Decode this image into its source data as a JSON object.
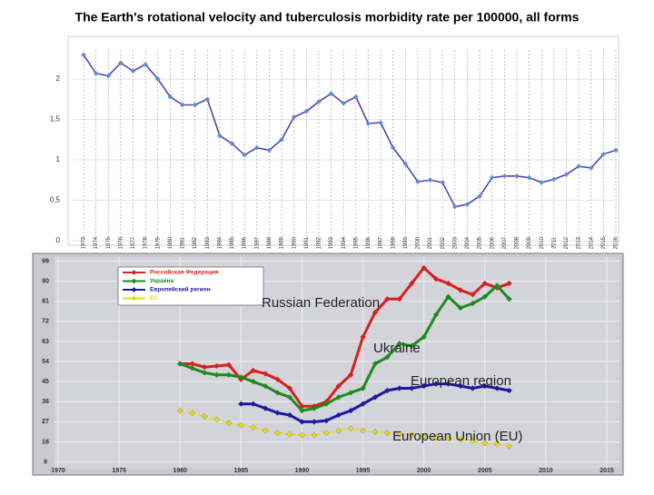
{
  "title": "The Earth's rotational velocity and tuberculosis morbidity rate per 100000, all forms",
  "chart_data": [
    {
      "type": "line",
      "categories": [
        "1973",
        "1974",
        "1975",
        "1976",
        "1977",
        "1978",
        "1979",
        "1980",
        "1981",
        "1982",
        "1983",
        "1984",
        "1985",
        "1986",
        "1987",
        "1988",
        "1989",
        "1990",
        "1991",
        "1992",
        "1993",
        "1994",
        "1995",
        "1996",
        "1997",
        "1998",
        "1999",
        "2000",
        "2001",
        "2002",
        "2003",
        "2004",
        "2005",
        "2006",
        "2007",
        "2008",
        "2009",
        "2010",
        "2011",
        "2012",
        "2013",
        "2014",
        "2015",
        "2016"
      ],
      "series": [
        {
          "color": "#5a3fb0",
          "values": [
            2.3,
            2.07,
            2.04,
            2.2,
            2.1,
            2.18,
            2.0,
            1.78,
            1.68,
            1.68,
            1.75,
            1.3,
            1.2,
            1.06,
            1.15,
            1.12,
            1.25,
            1.53,
            1.6,
            1.72,
            1.82,
            1.7,
            1.78,
            1.45,
            1.46,
            1.15,
            0.95,
            0.73,
            0.75,
            0.72,
            0.42,
            0.45,
            0.55,
            0.78,
            0.8,
            0.8,
            0.78,
            0.72,
            0.76,
            0.82,
            0.92,
            0.9,
            1.07,
            1.12
          ]
        }
      ],
      "ylim": [
        0,
        2.36
      ],
      "yticks": [
        0,
        {
          "value": 0.5,
          "label": "0,5"
        },
        1,
        {
          "value": 1.5,
          "label": "1,5"
        },
        2
      ],
      "grid": true
    },
    {
      "type": "line",
      "x": [
        1980,
        1981,
        1982,
        1983,
        1984,
        1985,
        1986,
        1987,
        1988,
        1989,
        1990,
        1991,
        1992,
        1993,
        1994,
        1995,
        1996,
        1997,
        1998,
        1999,
        2000,
        2001,
        2002,
        2003,
        2004,
        2005,
        2006,
        2007
      ],
      "series": [
        {
          "name": "Российская Федерация",
          "color": "#d62020",
          "values": [
            53,
            53,
            51.5,
            52,
            52.5,
            46,
            50,
            48.5,
            46,
            42,
            34,
            34,
            36,
            43,
            48,
            65,
            76,
            82,
            82,
            89,
            96,
            91,
            89,
            86,
            84,
            89,
            87,
            89
          ]
        },
        {
          "name": "Украина",
          "color": "#1e8a1e",
          "values": [
            53,
            51,
            49,
            48,
            48,
            47,
            45,
            43,
            40,
            38,
            32,
            33,
            35,
            38,
            40,
            42,
            53,
            56,
            62,
            61,
            65,
            75,
            83,
            78,
            80,
            83,
            88,
            82
          ]
        },
        {
          "name": "Европейский регион",
          "color": "#1a1aa0",
          "values": [
            null,
            null,
            null,
            null,
            null,
            35,
            35,
            33,
            31,
            30,
            27,
            27,
            27.5,
            30,
            32,
            35,
            38,
            41,
            42,
            42,
            43,
            44,
            44,
            43,
            42,
            43,
            42,
            41
          ]
        },
        {
          "name": "ЕС",
          "color": "#e6e000",
          "values": [
            32,
            31,
            29.5,
            28,
            26.5,
            25.5,
            24.5,
            23,
            22,
            21.5,
            21,
            21,
            22,
            23,
            24,
            23,
            22.5,
            22,
            21.5,
            21,
            20.5,
            20,
            19.5,
            19,
            18.5,
            17.5,
            17,
            16
          ]
        }
      ],
      "xlim": [
        1970,
        2015
      ],
      "xticks": [
        1970,
        1975,
        1980,
        1985,
        1990,
        1995,
        2000,
        2005,
        2010,
        2015
      ],
      "ylim": [
        6,
        100
      ],
      "yticks": [
        9,
        18,
        27,
        36,
        45,
        54,
        63,
        72,
        81,
        90,
        99
      ],
      "grid": true,
      "annotations": [
        "Russian Federation",
        "Ukraine",
        "European region",
        "European Union (EU)"
      ]
    }
  ]
}
